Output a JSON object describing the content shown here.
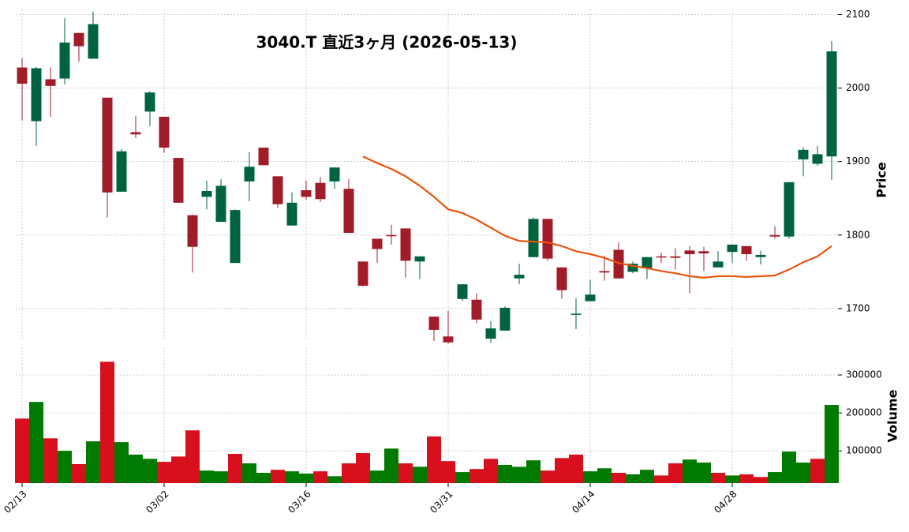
{
  "chart_data": {
    "type": "candlestick",
    "title": "3040.T 直近3ヶ月 (2026-05-13)",
    "categories": [
      "02/13",
      null,
      null,
      null,
      null,
      null,
      null,
      null,
      null,
      null,
      "03/02",
      null,
      null,
      null,
      null,
      null,
      null,
      null,
      null,
      null,
      "03/16",
      null,
      null,
      null,
      null,
      null,
      null,
      null,
      null,
      null,
      "03/31",
      null,
      null,
      null,
      null,
      null,
      null,
      null,
      null,
      null,
      "04/14",
      null,
      null,
      null,
      null,
      null,
      null,
      null,
      null,
      null,
      "04/28",
      null,
      null,
      null,
      null,
      null,
      null,
      null
    ],
    "open": [
      2028,
      1955,
      2012,
      2013,
      2075,
      2040,
      1987,
      1859,
      1940,
      1968,
      1961,
      1905,
      1827,
      1852,
      1818,
      1762,
      1873,
      1919,
      1880,
      1813,
      1861,
      1871,
      1873,
      1863,
      1764,
      1795,
      1800,
      1809,
      1764,
      1689,
      1662,
      1713,
      1712,
      1659,
      1670,
      1741,
      1770,
      1822,
      1756,
      1692,
      1710,
      1751,
      1780,
      1750,
      1755,
      1771,
      1771,
      1779,
      1778,
      1756,
      1777,
      1785,
      1770,
      1800,
      1798,
      1903,
      1897,
      1907
    ],
    "high": [
      2041,
      2029,
      2028,
      2095,
      2075,
      2104,
      1987,
      1917,
      1962,
      1996,
      1961,
      1905,
      1828,
      1874,
      1876,
      1835,
      1913,
      1919,
      1880,
      1858,
      1874,
      1879,
      1892,
      1876,
      1764,
      1795,
      1814,
      1809,
      1771,
      1689,
      1697,
      1733,
      1721,
      1683,
      1703,
      1761,
      1824,
      1822,
      1756,
      1714,
      1739,
      1772,
      1790,
      1764,
      1770,
      1776,
      1782,
      1785,
      1784,
      1778,
      1787,
      1785,
      1779,
      1812,
      1872,
      1920,
      1921,
      2064
    ],
    "low": [
      1956,
      1921,
      1961,
      2005,
      2036,
      2040,
      1824,
      1859,
      1932,
      1948,
      1912,
      1844,
      1749,
      1835,
      1818,
      1762,
      1846,
      1895,
      1837,
      1813,
      1848,
      1845,
      1863,
      1803,
      1730,
      1762,
      1787,
      1742,
      1740,
      1656,
      1652,
      1710,
      1680,
      1653,
      1670,
      1733,
      1770,
      1765,
      1713,
      1672,
      1710,
      1738,
      1741,
      1748,
      1740,
      1762,
      1753,
      1721,
      1751,
      1756,
      1762,
      1765,
      1760,
      1795,
      1795,
      1880,
      1894,
      1875
    ],
    "close": [
      2006,
      2027,
      2003,
      2062,
      2057,
      2087,
      1858,
      1914,
      1937,
      1994,
      1919,
      1844,
      1784,
      1860,
      1867,
      1834,
      1893,
      1895,
      1842,
      1844,
      1852,
      1849,
      1892,
      1803,
      1731,
      1781,
      1799,
      1765,
      1771,
      1671,
      1654,
      1733,
      1685,
      1673,
      1701,
      1746,
      1822,
      1768,
      1725,
      1693,
      1719,
      1749,
      1741,
      1761,
      1770,
      1770,
      1769,
      1774,
      1775,
      1764,
      1787,
      1774,
      1773,
      1798,
      1872,
      1916,
      1910,
      2050
    ],
    "up_color": "#006340",
    "down_color": "#a01c28",
    "ylim": [
      1658,
      2107
    ],
    "yticks": [
      1700,
      1800,
      1900,
      2000,
      2100
    ],
    "ylabel": "Price",
    "grid": true,
    "moving_average": {
      "color": "#e8540c",
      "values": [
        null,
        null,
        null,
        null,
        null,
        null,
        null,
        null,
        null,
        null,
        null,
        null,
        null,
        null,
        null,
        null,
        null,
        null,
        null,
        null,
        null,
        null,
        null,
        null,
        1907,
        1898,
        1890,
        1880,
        1867,
        1852,
        1835,
        1830,
        1821,
        1810,
        1799,
        1792,
        1791,
        1790,
        1785,
        1778,
        1774,
        1769,
        1762,
        1758,
        1755,
        1751,
        1748,
        1744,
        1742,
        1744,
        1744,
        1743,
        1744,
        1745,
        1753,
        1763,
        1771,
        1785
      ]
    },
    "volume": {
      "values": [
        185000,
        229000,
        133000,
        100000,
        65000,
        125000,
        335000,
        123000,
        90000,
        79000,
        71000,
        85000,
        154000,
        48000,
        46000,
        92000,
        67000,
        42000,
        50000,
        46000,
        40000,
        46000,
        33000,
        67000,
        94000,
        48000,
        106000,
        67000,
        58000,
        138000,
        73000,
        44000,
        52000,
        79000,
        63000,
        58000,
        75000,
        48000,
        81000,
        90000,
        46000,
        54000,
        42000,
        38000,
        50000,
        35000,
        67000,
        77000,
        69000,
        42000,
        35000,
        38000,
        31000,
        44000,
        98000,
        69000,
        79000,
        221000
      ],
      "ylim": [
        15000,
        373000
      ],
      "yticks": [
        100000,
        200000,
        300000
      ],
      "ylabel": "Volume",
      "up_color": "#007a00",
      "down_color": "#d8101e"
    }
  }
}
